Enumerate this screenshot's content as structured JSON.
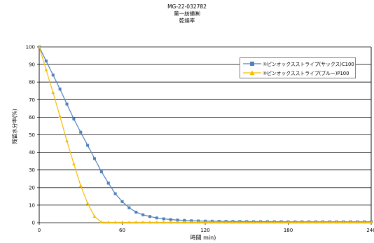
{
  "header": {
    "code": "MG-22-032782",
    "line2": "第一紡績㈱",
    "line3": "乾燥率"
  },
  "chart_data": {
    "type": "line",
    "title": "MG-22-032782",
    "xlabel": "時間 min)",
    "ylabel": "残留水分率(%)",
    "xlim": [
      0,
      240
    ],
    "ylim": [
      0,
      100
    ],
    "x_ticks": [
      "0",
      "60",
      "120",
      "180",
      "240"
    ],
    "y_ticks": [
      "0",
      "10",
      "20",
      "30",
      "40",
      "50",
      "60",
      "70",
      "80",
      "90",
      "100"
    ],
    "grid": "horizontal",
    "legend_position": "top-right",
    "series": [
      {
        "name": "①ピンオックスストライプ(サックス)C100",
        "color": "#4f81bd",
        "marker": "square",
        "x": [
          0,
          5,
          10,
          15,
          20,
          25,
          30,
          35,
          40,
          45,
          50,
          55,
          60,
          65,
          70,
          75,
          80,
          85,
          90,
          95,
          100,
          105,
          110,
          115,
          120,
          125,
          130,
          135,
          140,
          145,
          150,
          155,
          160,
          165,
          170,
          175,
          180,
          185,
          190,
          195,
          200,
          205,
          210,
          215,
          220,
          225,
          230,
          235,
          240
        ],
        "y": [
          100,
          92,
          84,
          76,
          67.5,
          59,
          51.5,
          44,
          36.5,
          29,
          22.5,
          16.5,
          12,
          8.5,
          6,
          4.5,
          3.5,
          2.7,
          2.2,
          1.8,
          1.5,
          1.3,
          1.1,
          1.0,
          0.9,
          0.85,
          0.8,
          0.75,
          0.7,
          0.7,
          0.65,
          0.6,
          0.6,
          0.6,
          0.55,
          0.55,
          0.5,
          0.5,
          0.5,
          0.5,
          0.5,
          0.5,
          0.5,
          0.5,
          0.5,
          0.5,
          0.5,
          0.5,
          0.5
        ]
      },
      {
        "name": "②ピンオックスストライプ(ブルー)P100",
        "color": "#f6bd00",
        "marker": "triangle",
        "x": [
          0,
          5,
          10,
          15,
          20,
          25,
          30,
          35,
          40,
          45,
          50,
          55,
          60,
          65,
          70,
          75,
          80,
          85,
          90,
          95,
          100,
          105,
          110,
          115,
          120,
          125,
          130,
          135,
          140,
          145,
          150,
          155,
          160,
          165,
          170,
          175,
          180,
          185,
          190,
          195,
          200,
          205,
          210,
          215,
          220,
          225,
          230,
          235,
          240
        ],
        "y": [
          100,
          87,
          74,
          60.5,
          46.5,
          33.5,
          21,
          11,
          3.5,
          0.3,
          0.2,
          0.2,
          0.2,
          0.2,
          0.2,
          0.2,
          0.2,
          0.2,
          0.2,
          0.2,
          0.2,
          0.2,
          0.2,
          0.2,
          0.2,
          0.2,
          0.2,
          0.2,
          0.2,
          0.2,
          0.2,
          0.2,
          0.2,
          0.2,
          0.2,
          0.2,
          0.2,
          0.2,
          0.2,
          0.2,
          0.2,
          0.2,
          0.2,
          0.2,
          0.2,
          0.2,
          0.2,
          0.2,
          0.2
        ]
      }
    ]
  }
}
